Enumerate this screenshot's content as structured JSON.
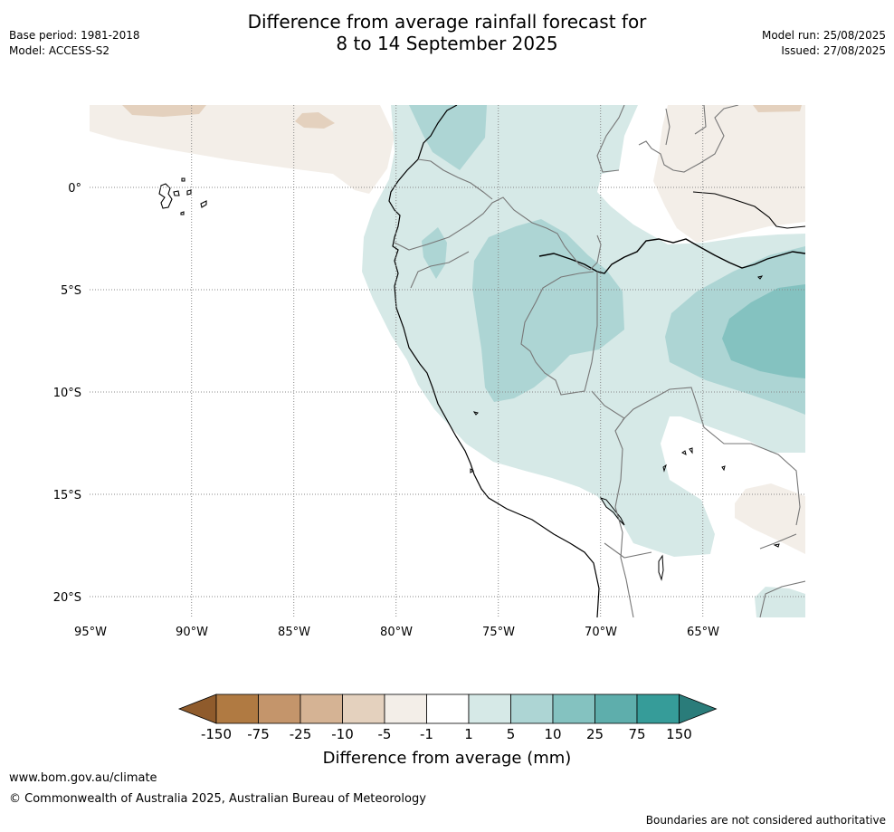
{
  "title": {
    "line1": "Difference from average rainfall forecast for",
    "line2": "8 to 14 September 2025"
  },
  "meta_left": {
    "base_period": "Base period: 1981-2018",
    "model": "Model: ACCESS-S2"
  },
  "meta_right": {
    "model_run": "Model run: 25/08/2025",
    "issued": "Issued: 27/08/2025"
  },
  "map": {
    "lon_labels": [
      "95°W",
      "90°W",
      "85°W",
      "80°W",
      "75°W",
      "70°W",
      "65°W"
    ],
    "lat_labels": [
      "0°",
      "5°S",
      "10°S",
      "15°S",
      "20°S"
    ],
    "gridlines": "dotted"
  },
  "colorbar": {
    "title": "Difference from average (mm)",
    "tick_labels": [
      "-150",
      "-75",
      "-25",
      "-10",
      "-5",
      "-1",
      "1",
      "5",
      "10",
      "25",
      "75",
      "150"
    ],
    "colors": [
      "#8f5b2c",
      "#b07a42",
      "#c4956b",
      "#d5b394",
      "#e4d1be",
      "#f3eee8",
      "#ffffff",
      "#d6e9e7",
      "#add5d4",
      "#84c2c0",
      "#5eaeac",
      "#369c99",
      "#2a7c7a"
    ]
  },
  "footer": {
    "website": "www.bom.gov.au/climate",
    "copyright": "© Commonwealth of Australia 2025, Australian Bureau of Meteorology",
    "boundaries_note": "Boundaries are not considered authoritative"
  }
}
